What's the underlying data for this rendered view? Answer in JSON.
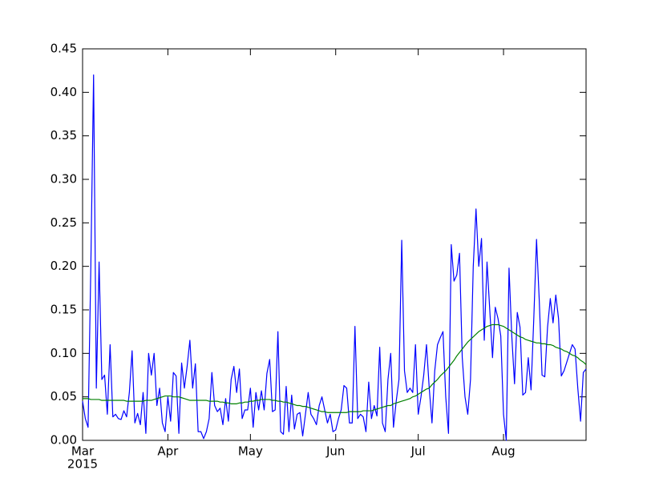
{
  "chart_data": {
    "type": "line",
    "xlim": [
      0,
      183
    ],
    "xticks": [
      {
        "value": 0,
        "label": "Mar"
      },
      {
        "value": 31,
        "label": "Apr"
      },
      {
        "value": 61,
        "label": "May"
      },
      {
        "value": 92,
        "label": "Jun"
      },
      {
        "value": 122,
        "label": "Jul"
      },
      {
        "value": 153,
        "label": "Aug"
      }
    ],
    "x_offset_text": "2015",
    "ylim": [
      0,
      0.45
    ],
    "yticks": [
      {
        "value": 0,
        "label": "0.00"
      },
      0.05,
      {
        "value": 0.1,
        "label": "0.10"
      },
      0.15,
      {
        "value": 0.2,
        "label": "0.20"
      },
      0.25,
      {
        "value": 0.3,
        "label": "0.30"
      },
      0.35,
      {
        "value": 0.4,
        "label": "0.40"
      },
      0.45
    ],
    "grid": false,
    "series": [
      {
        "color": "#0000ff",
        "values": [
          0.045,
          0.025,
          0.015,
          0.2,
          0.42,
          0.06,
          0.205,
          0.07,
          0.075,
          0.03,
          0.11,
          0.027,
          0.03,
          0.025,
          0.024,
          0.034,
          0.027,
          0.055,
          0.103,
          0.02,
          0.031,
          0.018,
          0.055,
          0.008,
          0.1,
          0.075,
          0.1,
          0.04,
          0.06,
          0.02,
          0.01,
          0.05,
          0.022,
          0.078,
          0.074,
          0.008,
          0.089,
          0.06,
          0.085,
          0.115,
          0.06,
          0.088,
          0.01,
          0.01,
          0.002,
          0.01,
          0.025,
          0.078,
          0.04,
          0.033,
          0.037,
          0.018,
          0.048,
          0.022,
          0.07,
          0.085,
          0.055,
          0.082,
          0.025,
          0.035,
          0.035,
          0.06,
          0.015,
          0.055,
          0.035,
          0.057,
          0.035,
          0.077,
          0.093,
          0.033,
          0.035,
          0.125,
          0.01,
          0.007,
          0.062,
          0.01,
          0.052,
          0.013,
          0.03,
          0.032,
          0.005,
          0.03,
          0.055,
          0.03,
          0.025,
          0.018,
          0.04,
          0.05,
          0.035,
          0.02,
          0.03,
          0.01,
          0.012,
          0.025,
          0.035,
          0.063,
          0.06,
          0.02,
          0.02,
          0.131,
          0.025,
          0.03,
          0.027,
          0.01,
          0.067,
          0.025,
          0.04,
          0.028,
          0.107,
          0.02,
          0.01,
          0.07,
          0.1,
          0.015,
          0.045,
          0.07,
          0.23,
          0.08,
          0.055,
          0.06,
          0.055,
          0.11,
          0.03,
          0.05,
          0.075,
          0.11,
          0.06,
          0.02,
          0.08,
          0.11,
          0.118,
          0.125,
          0.05,
          0.008,
          0.225,
          0.183,
          0.19,
          0.215,
          0.095,
          0.05,
          0.03,
          0.07,
          0.2,
          0.266,
          0.2,
          0.232,
          0.115,
          0.205,
          0.15,
          0.095,
          0.153,
          0.14,
          0.12,
          0.03,
          0.0,
          0.198,
          0.12,
          0.065,
          0.147,
          0.13,
          0.052,
          0.055,
          0.095,
          0.058,
          0.14,
          0.231,
          0.16,
          0.075,
          0.073,
          0.13,
          0.163,
          0.135,
          0.167,
          0.14,
          0.074,
          0.08,
          0.09,
          0.1,
          0.11,
          0.105,
          0.06,
          0.022,
          0.078,
          0.082
        ]
      },
      {
        "color": "#008000",
        "values": [
          0.048,
          0.048,
          0.048,
          0.047,
          0.047,
          0.047,
          0.047,
          0.046,
          0.046,
          0.046,
          0.046,
          0.046,
          0.046,
          0.046,
          0.046,
          0.046,
          0.045,
          0.045,
          0.045,
          0.045,
          0.045,
          0.045,
          0.045,
          0.046,
          0.046,
          0.046,
          0.047,
          0.048,
          0.049,
          0.05,
          0.051,
          0.051,
          0.051,
          0.05,
          0.05,
          0.05,
          0.049,
          0.048,
          0.047,
          0.046,
          0.046,
          0.046,
          0.046,
          0.046,
          0.046,
          0.046,
          0.045,
          0.045,
          0.045,
          0.045,
          0.044,
          0.044,
          0.043,
          0.043,
          0.042,
          0.042,
          0.042,
          0.043,
          0.043,
          0.044,
          0.044,
          0.045,
          0.045,
          0.046,
          0.046,
          0.047,
          0.047,
          0.047,
          0.047,
          0.046,
          0.046,
          0.045,
          0.045,
          0.044,
          0.044,
          0.043,
          0.042,
          0.041,
          0.04,
          0.04,
          0.039,
          0.039,
          0.038,
          0.037,
          0.036,
          0.035,
          0.034,
          0.033,
          0.033,
          0.032,
          0.032,
          0.032,
          0.032,
          0.032,
          0.032,
          0.032,
          0.032,
          0.033,
          0.033,
          0.033,
          0.033,
          0.033,
          0.034,
          0.034,
          0.034,
          0.034,
          0.035,
          0.036,
          0.037,
          0.038,
          0.039,
          0.04,
          0.04,
          0.042,
          0.043,
          0.044,
          0.045,
          0.046,
          0.047,
          0.048,
          0.05,
          0.051,
          0.053,
          0.055,
          0.057,
          0.059,
          0.06,
          0.064,
          0.067,
          0.07,
          0.074,
          0.077,
          0.08,
          0.084,
          0.088,
          0.092,
          0.097,
          0.101,
          0.105,
          0.109,
          0.113,
          0.116,
          0.119,
          0.122,
          0.125,
          0.127,
          0.129,
          0.131,
          0.132,
          0.133,
          0.133,
          0.133,
          0.132,
          0.131,
          0.129,
          0.127,
          0.125,
          0.123,
          0.121,
          0.119,
          0.118,
          0.116,
          0.115,
          0.114,
          0.113,
          0.112,
          0.112,
          0.111,
          0.111,
          0.11,
          0.11,
          0.109,
          0.107,
          0.106,
          0.105,
          0.103,
          0.102,
          0.1,
          0.098,
          0.097,
          0.095,
          0.092,
          0.09,
          0.087
        ]
      }
    ]
  }
}
